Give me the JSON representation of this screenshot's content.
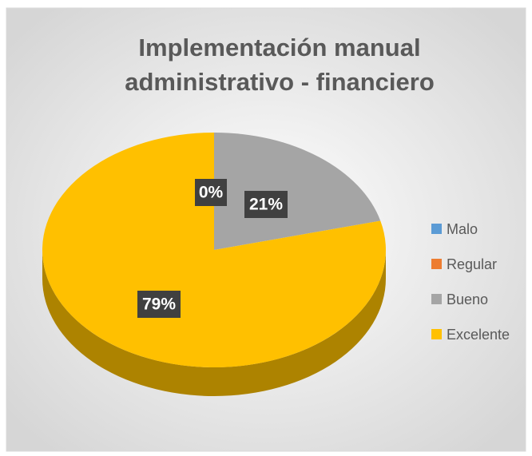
{
  "chart_data": {
    "type": "pie",
    "title": "Implementación manual administrativo - financiero",
    "categories": [
      "Malo",
      "Regular",
      "Bueno",
      "Excelente"
    ],
    "values": [
      0,
      0,
      21,
      79
    ],
    "value_labels": [
      "0%",
      null,
      "21%",
      "79%"
    ],
    "colors": [
      "#5B9BD5",
      "#ED7D31",
      "#A5A5A5",
      "#FFC000"
    ],
    "legend": "right"
  }
}
